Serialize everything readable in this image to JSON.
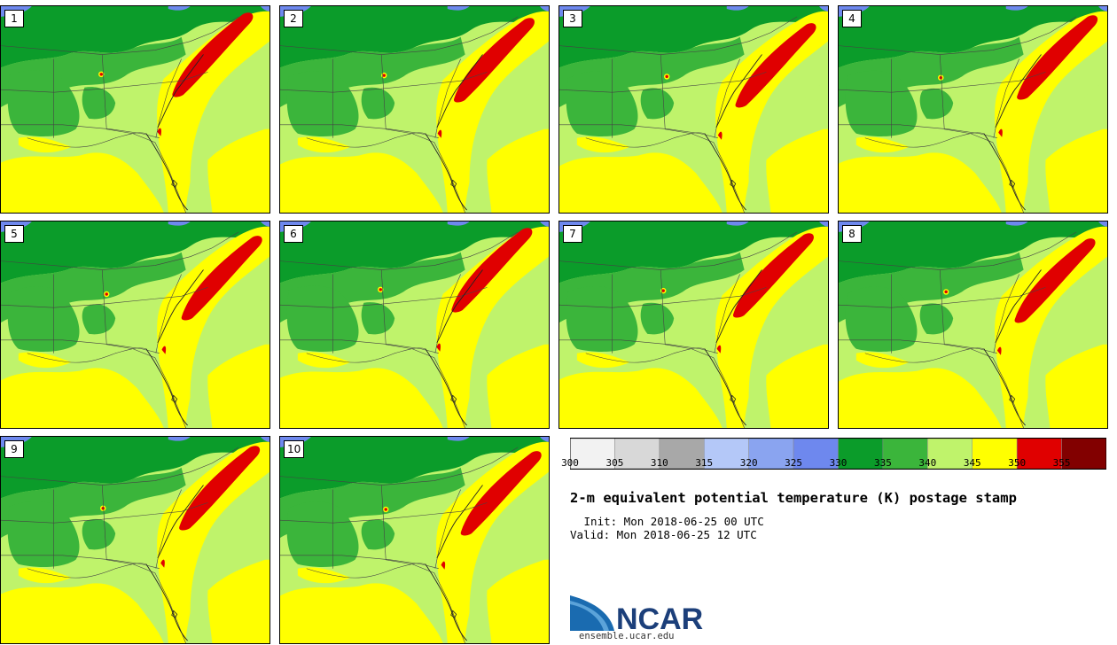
{
  "panels": [
    {
      "label": "1"
    },
    {
      "label": "2"
    },
    {
      "label": "3"
    },
    {
      "label": "4"
    },
    {
      "label": "5"
    },
    {
      "label": "6"
    },
    {
      "label": "7"
    },
    {
      "label": "8"
    },
    {
      "label": "9"
    },
    {
      "label": "10"
    }
  ],
  "colorbar": {
    "colors": [
      "#f2f2f2",
      "#d8d8d8",
      "#a8a8a8",
      "#b4c8f8",
      "#8aa4f0",
      "#6e88ee",
      "#0b9c2a",
      "#3bb53b",
      "#bff36b",
      "#ffff00",
      "#e00000",
      "#820000"
    ],
    "ticks": [
      "300",
      "305",
      "310",
      "315",
      "320",
      "325",
      "330",
      "335",
      "340",
      "345",
      "350",
      "355"
    ]
  },
  "title": "2-m equivalent potential temperature (K) postage stamp",
  "init": " Init: Mon 2018-06-25 00 UTC",
  "valid": "Valid: Mon 2018-06-25 12 UTC",
  "logo": {
    "text": "NCAR",
    "url": "ensemble.ucar.edu",
    "colors": {
      "blue": "#1a6bb0",
      "light_blue": "#5ba3d9",
      "text": "#1c3f7a"
    }
  }
}
